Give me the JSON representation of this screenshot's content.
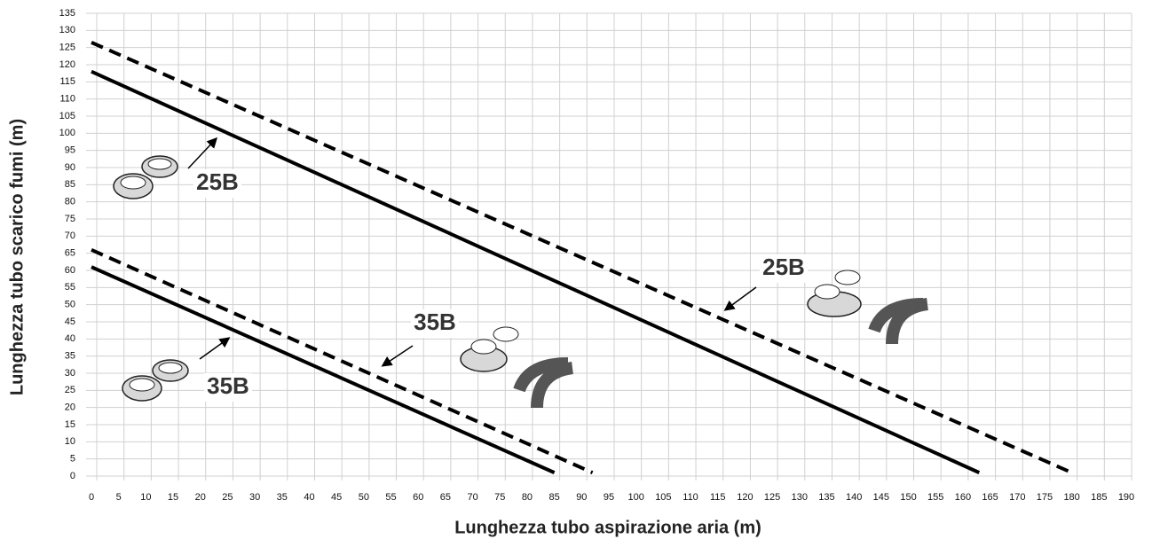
{
  "chart_data": {
    "type": "line",
    "xlabel": "Lunghezza tubo aspirazione aria (m)",
    "ylabel": "Lunghezza tubo scarico fumi (m)",
    "series": [
      {
        "name": "25B",
        "color": "#000000",
        "style": "solid",
        "x": [
          0,
          163
        ],
        "values": [
          118,
          1
        ]
      },
      {
        "name": "25B",
        "color": "#000000",
        "style": "dashed",
        "x": [
          0,
          180
        ],
        "values": [
          126.5,
          1
        ]
      },
      {
        "name": "35B",
        "color": "#000000",
        "style": "dashed",
        "x": [
          0,
          92
        ],
        "values": [
          66,
          1
        ]
      },
      {
        "name": "35B",
        "color": "#000000",
        "style": "solid",
        "x": [
          0,
          85
        ],
        "values": [
          61,
          1
        ]
      }
    ],
    "xlim": [
      0,
      190
    ],
    "ylim": [
      0,
      135
    ],
    "xticks": [
      0,
      5,
      10,
      15,
      20,
      25,
      30,
      35,
      40,
      45,
      50,
      55,
      60,
      65,
      70,
      75,
      80,
      85,
      90,
      95,
      100,
      105,
      110,
      115,
      120,
      125,
      130,
      135,
      140,
      145,
      150,
      155,
      160,
      165,
      170,
      175,
      180,
      185,
      190
    ],
    "yticks": [
      0,
      5,
      10,
      15,
      20,
      25,
      30,
      35,
      40,
      45,
      50,
      55,
      60,
      65,
      70,
      75,
      80,
      85,
      90,
      95,
      100,
      105,
      110,
      115,
      120,
      125,
      130,
      135
    ],
    "grid": true
  }
}
